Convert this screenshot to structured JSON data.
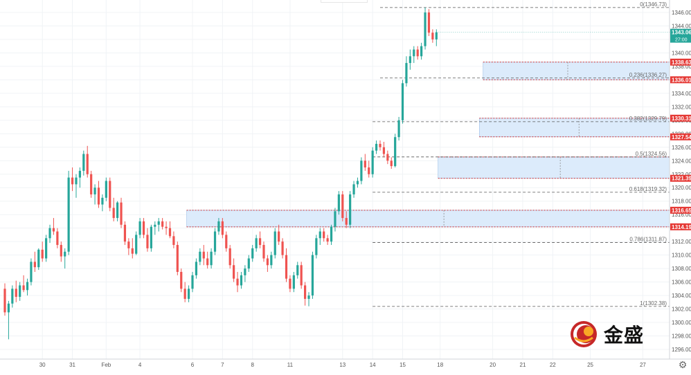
{
  "chart_data": {
    "type": "candlestick",
    "instrument_hint": "gold",
    "y_axis": {
      "range": [
        1294,
        1348
      ],
      "tick_labels": [
        "1296.00",
        "1298.00",
        "1300.00",
        "1302.00",
        "1304.00",
        "1306.00",
        "1308.00",
        "1310.00",
        "1312.00",
        "1314.00",
        "1316.00",
        "1318.00",
        "1320.00",
        "1322.00",
        "1324.00",
        "1326.00",
        "1328.00",
        "1330.00",
        "1332.00",
        "1334.00",
        "1336.00",
        "1338.00",
        "1340.00",
        "1342.00",
        "1344.00",
        "1346.00"
      ],
      "tick_values": [
        1296,
        1298,
        1300,
        1302,
        1304,
        1306,
        1308,
        1310,
        1312,
        1314,
        1316,
        1318,
        1320,
        1322,
        1324,
        1326,
        1328,
        1330,
        1332,
        1334,
        1336,
        1338,
        1340,
        1342,
        1344,
        1346
      ]
    },
    "x_axis": {
      "tick_labels": [
        "30",
        "31",
        "Feb",
        "4",
        "6",
        "7",
        "8",
        "11",
        "13",
        "14",
        "15",
        "18",
        "20",
        "21",
        "22",
        "25",
        "27"
      ],
      "tick_positions_bar_index": [
        10,
        18,
        27,
        36,
        50,
        58,
        66,
        76,
        90,
        98,
        106,
        116,
        130,
        138,
        146,
        156,
        170
      ],
      "last_bar_index": 135
    },
    "current_price": {
      "label": "1343.06",
      "value": 1343.06,
      "countdown": "27:00"
    },
    "fibonacci": {
      "line_color": "#555555",
      "levels": [
        {
          "label": "0(1346.73)",
          "value": 1346.73
        },
        {
          "label": "0.236(1336.27)",
          "value": 1336.27
        },
        {
          "label": "0.382(1329.79)",
          "value": 1329.79
        },
        {
          "label": "0.5(1324.56)",
          "value": 1324.56
        },
        {
          "label": "0.618(1319.32)",
          "value": 1319.32
        },
        {
          "label": "0.786(1311.87)",
          "value": 1311.87
        },
        {
          "label": "1(1302.38)",
          "value": 1302.38
        }
      ]
    },
    "zones": [
      {
        "top": 1316.65,
        "bottom": 1314.19,
        "top_label": "1316.65",
        "bottom_label": "1314.19",
        "start_bar": 49,
        "divider_bar": 117
      },
      {
        "top": 1330.31,
        "bottom": 1327.54,
        "top_label": "1330.31",
        "bottom_label": "1327.54",
        "start_bar": 127,
        "divider_bar": 153
      },
      {
        "top": 1338.63,
        "bottom": 1336.01,
        "top_label": "1338.63",
        "bottom_label": "1336.01",
        "start_bar": 128,
        "divider_bar": 150
      },
      {
        "top": 1324.56,
        "bottom": 1321.39,
        "top_label": "",
        "bottom_label": "1321.39",
        "start_bar": 116,
        "divider_bar": 148
      }
    ],
    "colors": {
      "up": "#26a69a",
      "down": "#ef5350",
      "zone_fill": "#dcebfb",
      "zone_border": "#d32f2f",
      "axis_label_red": "#e53935",
      "current_price_bg": "#26a69a",
      "grid": "#f0f3f6"
    },
    "candles": [
      [
        1305.0,
        1305.8,
        1301.0,
        1301.5
      ],
      [
        1301.5,
        1303.2,
        1297.5,
        1302.8
      ],
      [
        1302.8,
        1305.5,
        1302.2,
        1305.0
      ],
      [
        1305.0,
        1306.2,
        1303.0,
        1303.8
      ],
      [
        1303.8,
        1306.0,
        1303.2,
        1305.5
      ],
      [
        1305.5,
        1307.0,
        1304.5,
        1304.8
      ],
      [
        1304.8,
        1306.5,
        1304.0,
        1306.0
      ],
      [
        1306.0,
        1309.5,
        1305.5,
        1309.0
      ],
      [
        1309.0,
        1310.5,
        1307.5,
        1308.2
      ],
      [
        1308.2,
        1311.0,
        1307.8,
        1310.8
      ],
      [
        1310.8,
        1312.0,
        1309.0,
        1309.5
      ],
      [
        1309.5,
        1313.0,
        1309.0,
        1312.5
      ],
      [
        1312.5,
        1314.5,
        1311.8,
        1314.0
      ],
      [
        1314.0,
        1315.5,
        1313.0,
        1313.5
      ],
      [
        1313.5,
        1314.0,
        1311.0,
        1311.5
      ],
      [
        1311.5,
        1312.0,
        1309.0,
        1309.8
      ],
      [
        1309.8,
        1311.0,
        1308.0,
        1310.5
      ],
      [
        1310.5,
        1322.5,
        1310.0,
        1321.5
      ],
      [
        1321.5,
        1323.0,
        1319.5,
        1320.5
      ],
      [
        1320.5,
        1322.0,
        1318.5,
        1321.5
      ],
      [
        1321.5,
        1323.0,
        1320.0,
        1322.5
      ],
      [
        1322.5,
        1325.5,
        1321.8,
        1325.0
      ],
      [
        1325.0,
        1326.2,
        1321.5,
        1322.0
      ],
      [
        1322.0,
        1322.5,
        1318.5,
        1319.0
      ],
      [
        1319.0,
        1320.5,
        1317.5,
        1320.0
      ],
      [
        1320.0,
        1321.0,
        1317.0,
        1317.5
      ],
      [
        1317.5,
        1319.0,
        1316.5,
        1318.5
      ],
      [
        1318.5,
        1321.5,
        1318.0,
        1321.0
      ],
      [
        1321.0,
        1321.5,
        1316.5,
        1317.0
      ],
      [
        1317.0,
        1318.5,
        1315.0,
        1315.5
      ],
      [
        1315.5,
        1318.0,
        1315.0,
        1317.8
      ],
      [
        1317.8,
        1318.5,
        1314.0,
        1314.5
      ],
      [
        1314.5,
        1315.0,
        1311.5,
        1312.0
      ],
      [
        1312.0,
        1312.5,
        1310.0,
        1311.0
      ],
      [
        1311.0,
        1312.5,
        1309.5,
        1310.2
      ],
      [
        1310.2,
        1313.5,
        1310.0,
        1313.0
      ],
      [
        1313.0,
        1315.5,
        1312.5,
        1315.0
      ],
      [
        1315.0,
        1315.5,
        1312.5,
        1313.0
      ],
      [
        1313.0,
        1314.0,
        1310.5,
        1311.0
      ],
      [
        1311.0,
        1314.5,
        1310.5,
        1314.2
      ],
      [
        1314.2,
        1315.0,
        1313.0,
        1314.5
      ],
      [
        1314.5,
        1315.5,
        1313.5,
        1315.0
      ],
      [
        1315.0,
        1315.5,
        1313.8,
        1314.2
      ],
      [
        1314.2,
        1315.0,
        1313.0,
        1314.0
      ],
      [
        1314.0,
        1315.0,
        1312.5,
        1312.8
      ],
      [
        1312.8,
        1313.5,
        1311.0,
        1311.5
      ],
      [
        1311.5,
        1312.0,
        1307.0,
        1307.5
      ],
      [
        1307.5,
        1308.0,
        1304.5,
        1305.0
      ],
      [
        1305.0,
        1306.0,
        1303.0,
        1303.5
      ],
      [
        1303.5,
        1305.5,
        1303.0,
        1305.0
      ],
      [
        1305.0,
        1307.5,
        1304.5,
        1307.0
      ],
      [
        1307.0,
        1309.5,
        1306.5,
        1309.0
      ],
      [
        1309.0,
        1311.0,
        1308.5,
        1310.5
      ],
      [
        1310.5,
        1311.5,
        1308.5,
        1309.5
      ],
      [
        1309.5,
        1310.5,
        1308.0,
        1308.5
      ],
      [
        1308.5,
        1311.0,
        1308.0,
        1310.5
      ],
      [
        1310.5,
        1314.0,
        1310.0,
        1313.5
      ],
      [
        1313.5,
        1315.5,
        1313.0,
        1315.0
      ],
      [
        1315.0,
        1315.5,
        1312.5,
        1313.0
      ],
      [
        1313.0,
        1313.5,
        1310.5,
        1311.0
      ],
      [
        1311.0,
        1311.5,
        1308.0,
        1308.5
      ],
      [
        1308.5,
        1309.5,
        1306.0,
        1306.5
      ],
      [
        1306.5,
        1307.5,
        1304.5,
        1305.5
      ],
      [
        1305.5,
        1307.5,
        1305.0,
        1307.0
      ],
      [
        1307.0,
        1308.5,
        1306.0,
        1308.0
      ],
      [
        1308.0,
        1310.0,
        1307.5,
        1309.5
      ],
      [
        1309.5,
        1311.5,
        1309.0,
        1311.0
      ],
      [
        1311.0,
        1313.0,
        1310.5,
        1312.5
      ],
      [
        1312.5,
        1313.5,
        1311.0,
        1311.5
      ],
      [
        1311.5,
        1312.0,
        1309.0,
        1309.5
      ],
      [
        1309.5,
        1310.0,
        1307.5,
        1308.5
      ],
      [
        1308.5,
        1310.5,
        1308.0,
        1310.0
      ],
      [
        1310.0,
        1314.0,
        1309.5,
        1313.5
      ],
      [
        1313.5,
        1314.5,
        1311.5,
        1312.0
      ],
      [
        1312.0,
        1312.5,
        1309.5,
        1310.0
      ],
      [
        1310.0,
        1311.0,
        1306.0,
        1306.5
      ],
      [
        1306.5,
        1307.0,
        1304.5,
        1305.0
      ],
      [
        1305.0,
        1307.5,
        1304.5,
        1307.0
      ],
      [
        1307.0,
        1309.0,
        1306.5,
        1308.5
      ],
      [
        1308.5,
        1309.0,
        1305.0,
        1305.5
      ],
      [
        1305.5,
        1306.0,
        1302.5,
        1303.5
      ],
      [
        1303.5,
        1304.5,
        1302.4,
        1304.0
      ],
      [
        1304.0,
        1310.5,
        1303.5,
        1310.0
      ],
      [
        1310.0,
        1313.0,
        1309.5,
        1312.5
      ],
      [
        1312.5,
        1314.0,
        1311.5,
        1313.5
      ],
      [
        1313.5,
        1314.0,
        1312.0,
        1312.5
      ],
      [
        1312.5,
        1313.0,
        1311.5,
        1312.0
      ],
      [
        1312.0,
        1314.5,
        1311.5,
        1314.2
      ],
      [
        1314.2,
        1317.0,
        1313.5,
        1316.5
      ],
      [
        1316.5,
        1319.5,
        1316.0,
        1319.0
      ],
      [
        1319.0,
        1319.5,
        1315.0,
        1315.5
      ],
      [
        1315.5,
        1316.5,
        1314.0,
        1314.5
      ],
      [
        1314.5,
        1319.5,
        1314.0,
        1319.0
      ],
      [
        1319.0,
        1321.0,
        1318.5,
        1320.5
      ],
      [
        1320.5,
        1321.5,
        1320.0,
        1321.0
      ],
      [
        1321.0,
        1324.5,
        1320.5,
        1324.0
      ],
      [
        1324.0,
        1325.0,
        1322.5,
        1323.0
      ],
      [
        1323.0,
        1324.0,
        1321.5,
        1322.0
      ],
      [
        1322.0,
        1326.0,
        1321.5,
        1325.5
      ],
      [
        1325.5,
        1327.0,
        1325.0,
        1326.5
      ],
      [
        1326.5,
        1327.0,
        1325.5,
        1326.0
      ],
      [
        1326.0,
        1326.8,
        1324.5,
        1325.0
      ],
      [
        1325.0,
        1325.5,
        1323.5,
        1324.0
      ],
      [
        1324.0,
        1324.5,
        1322.8,
        1323.2
      ],
      [
        1323.2,
        1328.0,
        1323.0,
        1327.5
      ],
      [
        1327.5,
        1330.5,
        1327.0,
        1330.0
      ],
      [
        1330.0,
        1336.0,
        1329.5,
        1335.5
      ],
      [
        1335.5,
        1339.5,
        1335.0,
        1338.5
      ],
      [
        1338.5,
        1340.5,
        1337.5,
        1339.5
      ],
      [
        1339.5,
        1341.0,
        1338.5,
        1340.5
      ],
      [
        1340.5,
        1341.0,
        1339.0,
        1339.5
      ],
      [
        1339.5,
        1341.5,
        1339.0,
        1341.0
      ],
      [
        1341.0,
        1346.73,
        1340.5,
        1346.0
      ],
      [
        1346.0,
        1346.5,
        1342.5,
        1343.0
      ],
      [
        1343.0,
        1343.5,
        1341.5,
        1342.0
      ],
      [
        1342.0,
        1343.5,
        1341.0,
        1343.06
      ]
    ]
  },
  "ui": {
    "logo_text": "金盛",
    "settings_icon": "gear-icon"
  }
}
